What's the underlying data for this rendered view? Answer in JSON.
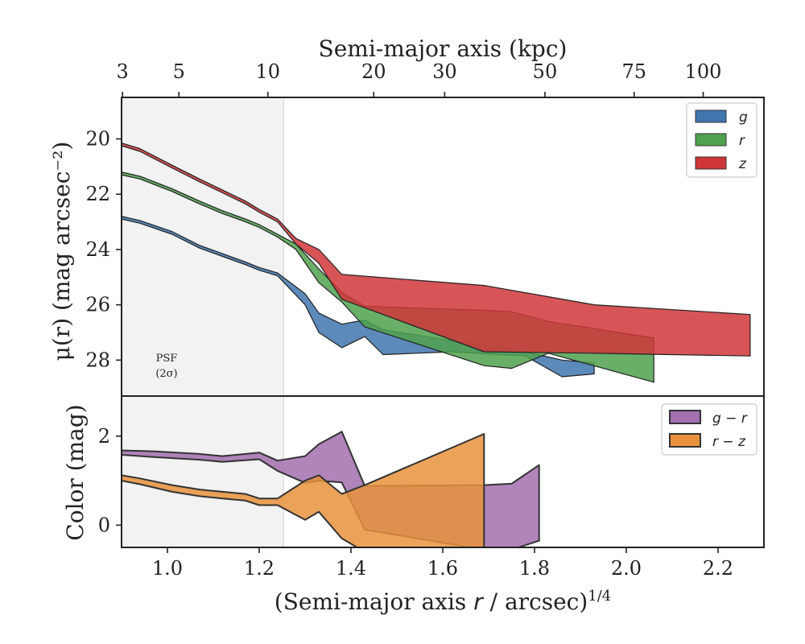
{
  "chart_data": [
    {
      "type": "area",
      "panel": "surface-brightness",
      "top_xlabel": "Semi-major axis (kpc)",
      "top_ticks_kpc": [
        "3",
        "5",
        "10",
        "20",
        "30",
        "50",
        "75",
        "100"
      ],
      "top_tick_values_kpc": [
        3,
        5,
        10,
        20,
        30,
        50,
        75,
        100
      ],
      "ylabel": "μ(r) (mag arcsec⁻²)",
      "ylim": [
        29.3,
        18.5
      ],
      "y_inverted": true,
      "yticks": [
        "20",
        "22",
        "24",
        "26",
        "28"
      ],
      "ytick_values": [
        20,
        22,
        24,
        26,
        28
      ],
      "xlim": [
        0.9,
        2.3
      ],
      "psf_label_line1": "PSF",
      "psf_label_line2": "(2σ)",
      "psf_limit_x": 1.253,
      "legend_position": "top-right",
      "series": [
        {
          "name": "g",
          "color": "#3f76ae",
          "x": [
            0.9,
            0.94,
            1.01,
            1.07,
            1.12,
            1.17,
            1.2,
            1.24,
            1.3,
            1.33,
            1.38,
            1.43,
            1.47,
            1.62,
            1.78,
            1.86,
            1.93
          ],
          "y_low": [
            22.8,
            22.95,
            23.35,
            23.85,
            24.15,
            24.45,
            24.65,
            24.85,
            25.6,
            26.3,
            26.7,
            26.55,
            26.9,
            27.3,
            27.7,
            28.0,
            28.1
          ],
          "y_high": [
            22.9,
            23.05,
            23.45,
            23.95,
            24.25,
            24.55,
            24.75,
            24.95,
            26.0,
            27.0,
            27.55,
            27.15,
            27.8,
            27.7,
            27.85,
            28.6,
            28.5
          ]
        },
        {
          "name": "r",
          "color": "#4fa14d",
          "x": [
            0.9,
            0.94,
            1.01,
            1.07,
            1.12,
            1.17,
            1.2,
            1.24,
            1.28,
            1.33,
            1.38,
            1.43,
            1.69,
            1.75,
            1.83,
            2.06
          ],
          "y_low": [
            21.2,
            21.35,
            21.8,
            22.25,
            22.6,
            22.9,
            23.1,
            23.45,
            23.8,
            24.7,
            25.55,
            26.05,
            26.2,
            26.25,
            26.6,
            27.2
          ],
          "y_high": [
            21.3,
            21.45,
            21.9,
            22.35,
            22.7,
            23.0,
            23.2,
            23.55,
            24.0,
            25.2,
            25.9,
            26.8,
            28.2,
            28.3,
            27.75,
            28.8
          ]
        },
        {
          "name": "z",
          "color": "#d03639",
          "x": [
            0.9,
            0.94,
            1.01,
            1.07,
            1.12,
            1.17,
            1.2,
            1.24,
            1.28,
            1.33,
            1.38,
            1.69,
            1.93,
            2.27
          ],
          "y_low": [
            20.15,
            20.35,
            20.95,
            21.45,
            21.85,
            22.25,
            22.55,
            22.9,
            23.6,
            24.0,
            24.9,
            25.3,
            26.0,
            26.35
          ],
          "y_high": [
            20.25,
            20.45,
            21.05,
            21.55,
            21.95,
            22.35,
            22.65,
            23.0,
            23.8,
            24.5,
            25.8,
            27.7,
            27.75,
            27.85
          ]
        }
      ]
    },
    {
      "type": "area",
      "panel": "color",
      "xlabel": "(Semi-major axis r / arcsec)1/4",
      "xlabel_main": "(Semi-major axis ",
      "xlabel_var": "r",
      "xlabel_mid": " / arcsec)",
      "xlabel_sup": "1/4",
      "ylabel": "Color (mag)",
      "xlim": [
        0.9,
        2.3
      ],
      "ylim": [
        -0.5,
        2.9
      ],
      "xticks": [
        "1.0",
        "1.2",
        "1.4",
        "1.6",
        "1.8",
        "2.0",
        "2.2"
      ],
      "xtick_values": [
        1.0,
        1.2,
        1.4,
        1.6,
        1.8,
        2.0,
        2.2
      ],
      "yticks": [
        "0",
        "2"
      ],
      "ytick_values": [
        0,
        2
      ],
      "legend_position": "top-right",
      "series": [
        {
          "name": "g − r",
          "color": "#a36fae",
          "x": [
            0.9,
            0.97,
            1.07,
            1.12,
            1.2,
            1.24,
            1.3,
            1.33,
            1.38,
            1.43,
            1.69,
            1.75,
            1.81
          ],
          "y_low": [
            1.58,
            1.53,
            1.47,
            1.42,
            1.48,
            1.22,
            0.95,
            1.0,
            0.96,
            -0.1,
            -0.55,
            -0.55,
            -0.35
          ],
          "y_high": [
            1.68,
            1.66,
            1.6,
            1.55,
            1.63,
            1.45,
            1.55,
            1.82,
            2.1,
            0.88,
            0.9,
            0.93,
            1.35
          ]
        },
        {
          "name": "r − z",
          "color": "#e8923c",
          "x": [
            0.9,
            0.94,
            1.01,
            1.07,
            1.12,
            1.17,
            1.2,
            1.22,
            1.24,
            1.3,
            1.33,
            1.38,
            1.43,
            1.69
          ],
          "y_low": [
            1.0,
            0.92,
            0.75,
            0.65,
            0.6,
            0.55,
            0.45,
            0.45,
            0.45,
            0.12,
            0.3,
            -0.3,
            -0.6,
            -0.55
          ],
          "y_high": [
            1.12,
            1.05,
            0.9,
            0.8,
            0.75,
            0.7,
            0.6,
            0.6,
            0.6,
            1.0,
            1.12,
            0.7,
            0.9,
            2.05
          ]
        }
      ]
    }
  ]
}
